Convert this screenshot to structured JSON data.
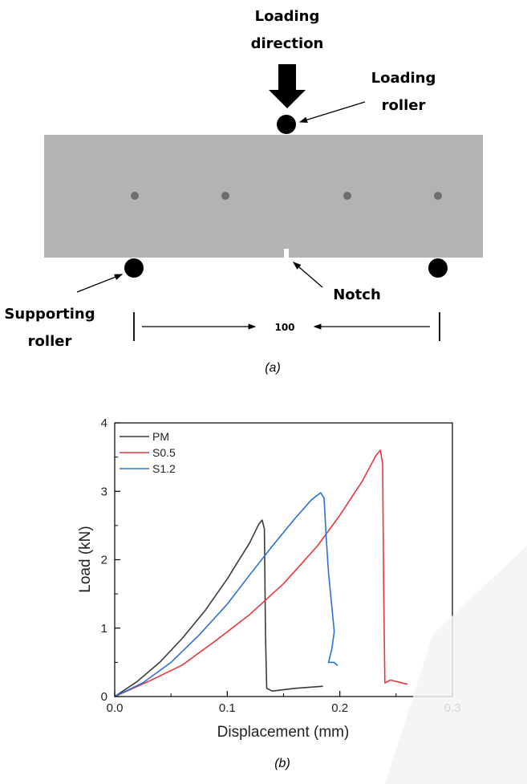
{
  "diagram": {
    "loading_direction_label": [
      "Loading",
      "direction"
    ],
    "loading_roller_label": [
      "Loading",
      "roller"
    ],
    "supporting_roller_label": [
      "Supporting",
      "roller"
    ],
    "notch_label": "Notch",
    "span_label": "100",
    "caption": "(a)",
    "colors": {
      "beam": "#b3b3b3",
      "roller": "#000000",
      "dot": "#6e6e6e"
    }
  },
  "chart_caption": "(b)",
  "chart_data": {
    "type": "line",
    "xlabel": "Displacement (mm)",
    "ylabel": "Load (kN)",
    "xlim": [
      0,
      0.3
    ],
    "ylim": [
      0,
      4
    ],
    "xticks": [
      "0.0",
      "0.1",
      "0.2",
      "0.3"
    ],
    "yticks": [
      "0",
      "1",
      "2",
      "3",
      "4"
    ],
    "legend_position": "top-left",
    "series": [
      {
        "name": "PM",
        "color": "#3a3a3a",
        "points": [
          [
            0,
            0
          ],
          [
            0.02,
            0.22
          ],
          [
            0.04,
            0.5
          ],
          [
            0.06,
            0.85
          ],
          [
            0.08,
            1.25
          ],
          [
            0.1,
            1.72
          ],
          [
            0.12,
            2.25
          ],
          [
            0.128,
            2.52
          ],
          [
            0.131,
            2.58
          ],
          [
            0.133,
            2.45
          ],
          [
            0.134,
            0.9
          ],
          [
            0.135,
            0.12
          ],
          [
            0.14,
            0.08
          ],
          [
            0.16,
            0.12
          ],
          [
            0.185,
            0.15
          ]
        ]
      },
      {
        "name": "S0.5",
        "color": "#e8373a",
        "points": [
          [
            0,
            0
          ],
          [
            0.03,
            0.22
          ],
          [
            0.06,
            0.46
          ],
          [
            0.09,
            0.82
          ],
          [
            0.12,
            1.2
          ],
          [
            0.15,
            1.65
          ],
          [
            0.18,
            2.2
          ],
          [
            0.2,
            2.65
          ],
          [
            0.22,
            3.15
          ],
          [
            0.232,
            3.52
          ],
          [
            0.236,
            3.6
          ],
          [
            0.238,
            3.4
          ],
          [
            0.239,
            1.5
          ],
          [
            0.24,
            0.2
          ],
          [
            0.245,
            0.24
          ],
          [
            0.26,
            0.18
          ]
        ]
      },
      {
        "name": "S1.2",
        "color": "#2b6fd6",
        "points": [
          [
            0,
            0
          ],
          [
            0.025,
            0.2
          ],
          [
            0.05,
            0.5
          ],
          [
            0.075,
            0.9
          ],
          [
            0.1,
            1.35
          ],
          [
            0.12,
            1.78
          ],
          [
            0.14,
            2.2
          ],
          [
            0.16,
            2.6
          ],
          [
            0.175,
            2.88
          ],
          [
            0.183,
            2.98
          ],
          [
            0.186,
            2.9
          ],
          [
            0.188,
            2.3
          ],
          [
            0.19,
            1.8
          ],
          [
            0.193,
            1.3
          ],
          [
            0.195,
            0.95
          ],
          [
            0.193,
            0.7
          ],
          [
            0.19,
            0.5
          ],
          [
            0.195,
            0.5
          ],
          [
            0.198,
            0.45
          ]
        ]
      }
    ]
  }
}
